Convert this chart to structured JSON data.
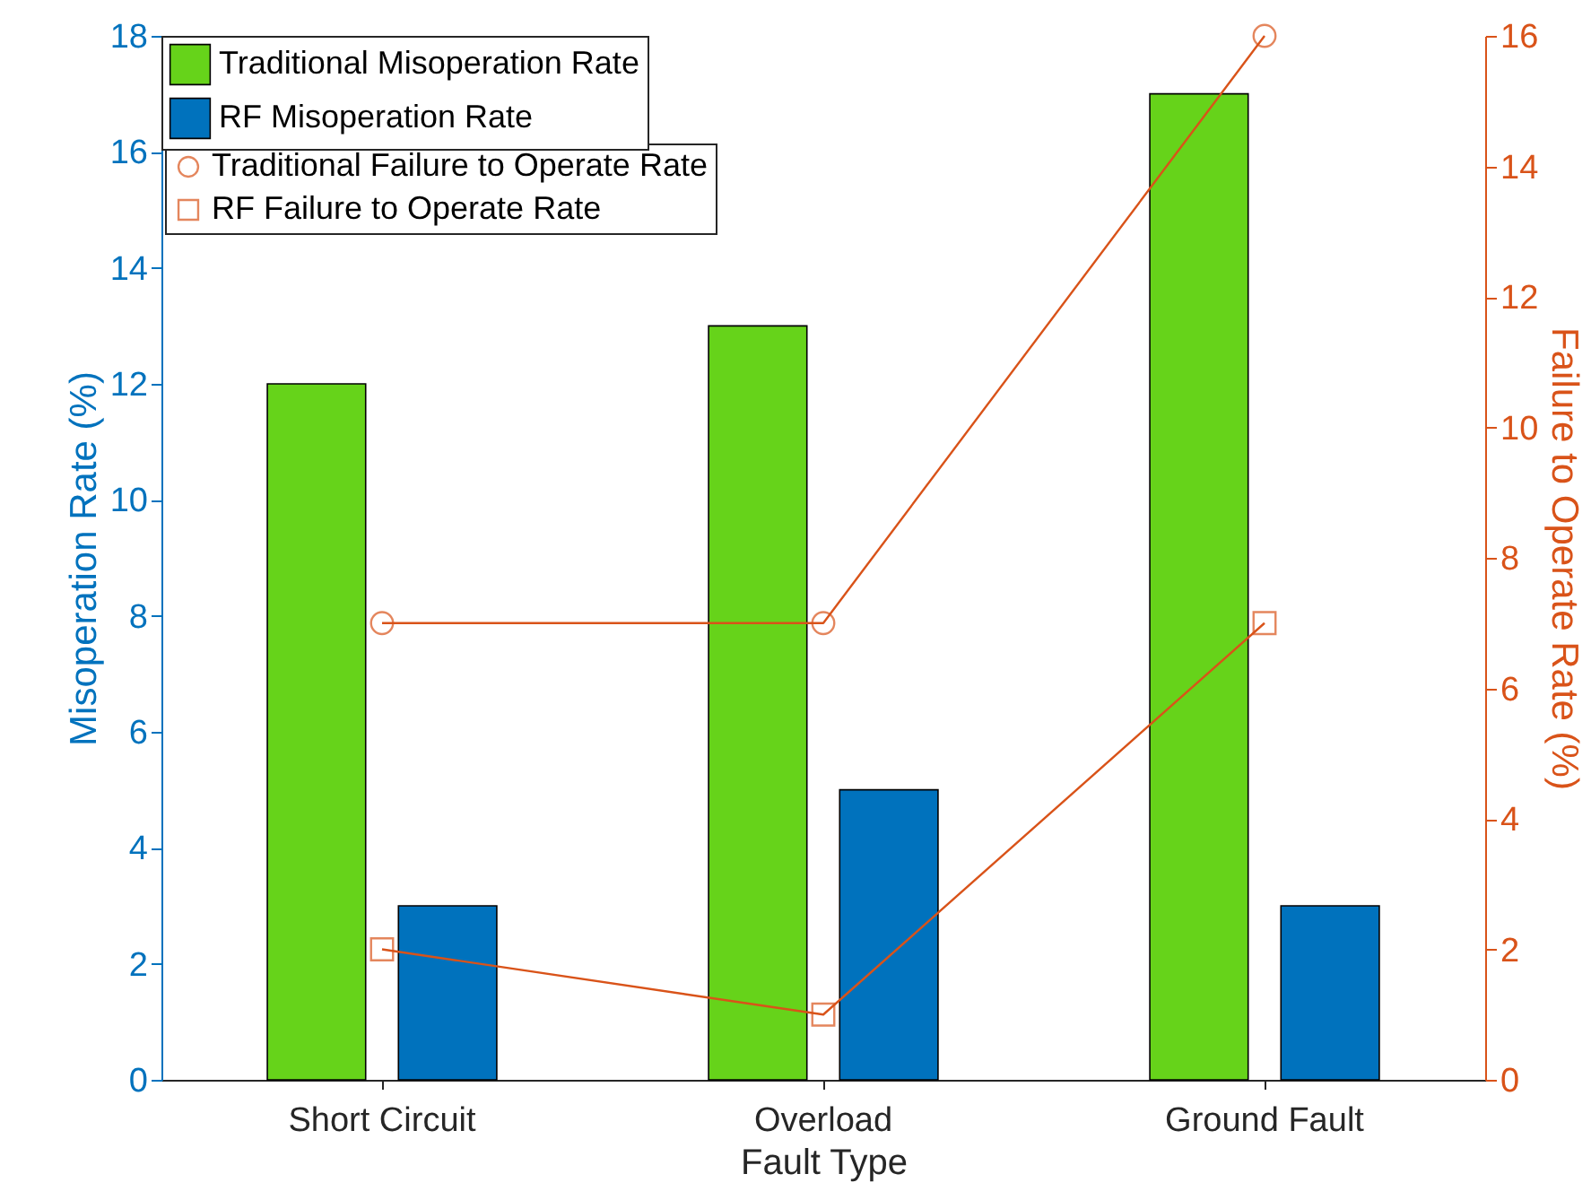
{
  "chart_data": {
    "type": "bar",
    "xlabel": "Fault Type",
    "ylabel": "Misoperation Rate (%)",
    "y2label": "Failure to Operate Rate (%)",
    "categories": [
      "Short Circuit",
      "Overload",
      "Ground Fault"
    ],
    "series": [
      {
        "name": "Traditional Misoperation Rate",
        "color": "#66d31a",
        "values": [
          12,
          13,
          17
        ]
      },
      {
        "name": "RF Misoperation Rate",
        "color": "#0072bd",
        "values": [
          3,
          5,
          3
        ]
      },
      {
        "name": "Traditional Failure to Operate Rate",
        "type": "line",
        "axis": "y2",
        "marker": "circle",
        "color": "#d95319",
        "values": [
          7,
          7,
          16
        ]
      },
      {
        "name": "RF Failure to Operate Rate",
        "type": "line",
        "axis": "y2",
        "marker": "square",
        "color": "#d95319",
        "values": [
          2,
          1,
          7
        ]
      }
    ],
    "ylim": [
      0,
      18
    ],
    "yticks": [
      0,
      2,
      4,
      6,
      8,
      10,
      12,
      14,
      16,
      18
    ],
    "y2lim": [
      0,
      16
    ],
    "y2ticks": [
      0,
      2,
      4,
      6,
      8,
      10,
      12,
      14,
      16
    ],
    "grid": false,
    "legend": "top left"
  }
}
